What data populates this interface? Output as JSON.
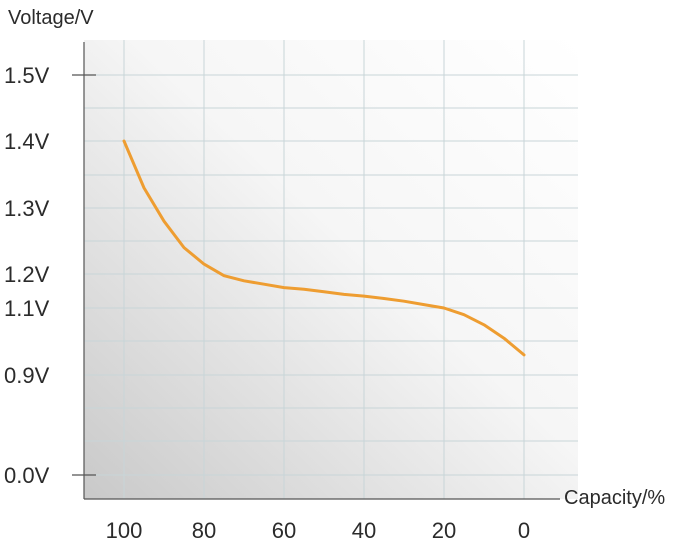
{
  "chart_data": {
    "type": "line",
    "title": "",
    "ylabel": "Voltage/V",
    "xlabel": "Capacity/%",
    "x_reversed": true,
    "xlim": [
      0,
      100
    ],
    "x_ticks": [
      {
        "value": 100,
        "label": "100"
      },
      {
        "value": 80,
        "label": "80"
      },
      {
        "value": 60,
        "label": "60"
      },
      {
        "value": 40,
        "label": "40"
      },
      {
        "value": 20,
        "label": "20"
      },
      {
        "value": 0,
        "label": "0"
      }
    ],
    "y_ticks": [
      {
        "value": 1.5,
        "label": "1.5V"
      },
      {
        "value": 1.4,
        "label": "1.4V"
      },
      {
        "value": 1.3,
        "label": "1.3V"
      },
      {
        "value": 1.2,
        "label": "1.2V"
      },
      {
        "value": 1.1,
        "label": "1.1V"
      },
      {
        "value": 0.9,
        "label": "0.9V"
      },
      {
        "value": 0.0,
        "label": "0.0V"
      }
    ],
    "grid": true,
    "series": [
      {
        "color": "#ee9d31",
        "x": [
          100,
          95,
          90,
          85,
          80,
          75,
          70,
          65,
          60,
          55,
          50,
          45,
          40,
          35,
          30,
          25,
          20,
          15,
          10,
          5,
          0
        ],
        "y": [
          1.4,
          1.33,
          1.28,
          1.24,
          1.215,
          1.195,
          1.18,
          1.17,
          1.16,
          1.155,
          1.148,
          1.14,
          1.135,
          1.128,
          1.12,
          1.11,
          1.1,
          1.08,
          1.05,
          1.01,
          0.96
        ]
      }
    ]
  }
}
